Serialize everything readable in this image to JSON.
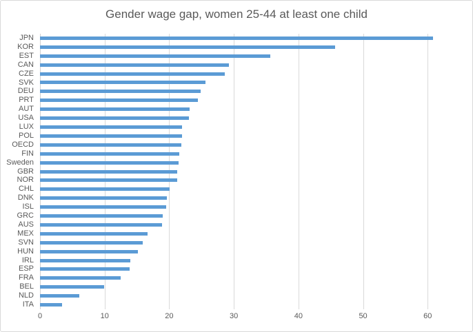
{
  "title": "Gender wage gap, women 25-44 at least one child",
  "colors": {
    "bar": "#5b9bd5",
    "gridline": "#d9d9d9",
    "axis_text": "#595959",
    "title_text": "#595959",
    "chart_border": "#d9d9d9",
    "background": "#ffffff"
  },
  "chart_data": {
    "type": "bar",
    "orientation": "horizontal",
    "title": "Gender wage gap, women 25-44 at least one child",
    "xlabel": "",
    "ylabel": "",
    "categories": [
      "JPN",
      "KOR",
      "EST",
      "CAN",
      "CZE",
      "SVK",
      "DEU",
      "PRT",
      "AUT",
      "USA",
      "LUX",
      "POL",
      "OECD",
      "FIN",
      "Sweden",
      "GBR",
      "NOR",
      "CHL",
      "DNK",
      "ISL",
      "GRC",
      "AUS",
      "MEX",
      "SVN",
      "HUN",
      "IRL",
      "ESP",
      "FRA",
      "BEL",
      "NLD",
      "ITA"
    ],
    "values": [
      60.8,
      45.7,
      35.6,
      29.2,
      28.6,
      25.6,
      24.9,
      24.4,
      23.2,
      23.0,
      22.0,
      22.0,
      21.9,
      21.6,
      21.4,
      21.2,
      21.2,
      20.1,
      19.6,
      19.5,
      19.0,
      18.9,
      16.6,
      15.9,
      15.2,
      14.0,
      13.9,
      12.5,
      9.9,
      6.1,
      3.4
    ],
    "x_ticks": [
      0,
      10,
      20,
      30,
      40,
      50,
      60
    ],
    "xlim": [
      0,
      66.8
    ],
    "grid": true,
    "legend": false
  }
}
